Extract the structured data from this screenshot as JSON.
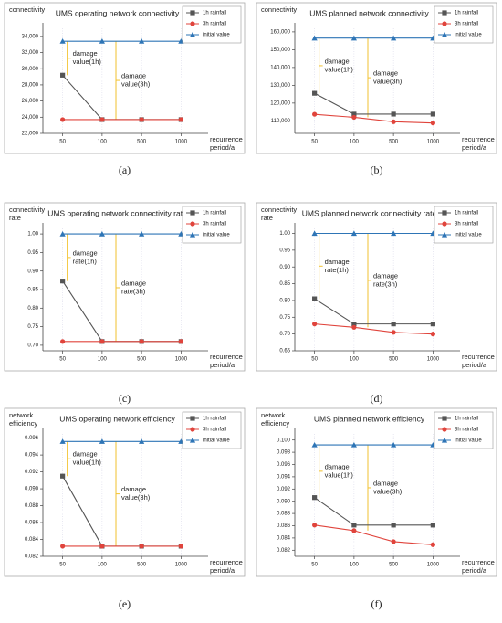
{
  "chart_data": [
    {
      "type": "line",
      "panel_label": "(a)",
      "title": "UMS operating network connectivity",
      "ylabel": [
        "connectivity"
      ],
      "xlabel": [
        "recurrence",
        "period/a"
      ],
      "categories": [
        "50",
        "100",
        "500",
        "1000"
      ],
      "series": [
        {
          "name": "1h rainfall",
          "color": "#555555",
          "marker": "square",
          "values": [
            29200,
            23700,
            23700,
            23700
          ]
        },
        {
          "name": "3h rainfall",
          "color": "#e0443c",
          "marker": "circle",
          "values": [
            23700,
            23700,
            23700,
            23700
          ]
        },
        {
          "name": "initial value",
          "color": "#2e75b6",
          "marker": "triangle",
          "values": [
            33400,
            33400,
            33400,
            33400
          ]
        }
      ],
      "ylim": [
        22000,
        35000
      ],
      "yticks": [
        {
          "value": 22000,
          "label": "22,000"
        },
        {
          "value": 24000,
          "label": "24,000"
        },
        {
          "value": 26000,
          "label": "26,000"
        },
        {
          "value": 28000,
          "label": "28,000"
        },
        {
          "value": 30000,
          "label": "30,000"
        },
        {
          "value": 32000,
          "label": "32,000"
        },
        {
          "value": 34000,
          "label": "34,000"
        }
      ],
      "annotations": [
        [
          "damage",
          "value(1h)"
        ],
        [
          "damage",
          "value(3h)"
        ]
      ]
    },
    {
      "type": "line",
      "panel_label": "(b)",
      "title": "UMS planned network connectivity",
      "ylabel": [
        "connectivity"
      ],
      "xlabel": [
        "recurrence",
        "period/a"
      ],
      "categories": [
        "50",
        "100",
        "500",
        "1000"
      ],
      "series": [
        {
          "name": "1h rainfall",
          "color": "#555555",
          "marker": "square",
          "values": [
            125500,
            113800,
            113800,
            113800
          ]
        },
        {
          "name": "3h rainfall",
          "color": "#e0443c",
          "marker": "circle",
          "values": [
            113700,
            112000,
            109500,
            108800
          ]
        },
        {
          "name": "initial value",
          "color": "#2e75b6",
          "marker": "triangle",
          "values": [
            156500,
            156500,
            156500,
            156500
          ]
        }
      ],
      "ylim": [
        103000,
        162000
      ],
      "yticks": [
        {
          "value": 110000,
          "label": "110,000"
        },
        {
          "value": 120000,
          "label": "120,000"
        },
        {
          "value": 130000,
          "label": "130,000"
        },
        {
          "value": 140000,
          "label": "140,000"
        },
        {
          "value": 150000,
          "label": "150,000"
        },
        {
          "value": 160000,
          "label": "160,000"
        }
      ],
      "annotations": [
        [
          "damage",
          "value(1h)"
        ],
        [
          "damage",
          "value(3h)"
        ]
      ]
    },
    {
      "type": "line",
      "panel_label": "(c)",
      "title": "UMS operating network connectivity rate",
      "ylabel": [
        "connectivity",
        "rate"
      ],
      "xlabel": [
        "recurrence",
        "period/a"
      ],
      "categories": [
        "50",
        "100",
        "500",
        "1000"
      ],
      "series": [
        {
          "name": "1h rainfall",
          "color": "#555555",
          "marker": "square",
          "values": [
            0.873,
            0.71,
            0.71,
            0.71
          ]
        },
        {
          "name": "3h rainfall",
          "color": "#e0443c",
          "marker": "circle",
          "values": [
            0.71,
            0.71,
            0.71,
            0.71
          ]
        },
        {
          "name": "initial value",
          "color": "#2e75b6",
          "marker": "triangle",
          "values": [
            1.0,
            1.0,
            1.0,
            1.0
          ]
        }
      ],
      "ylim": [
        0.685,
        1.015
      ],
      "yticks": [
        {
          "value": 0.7,
          "label": "0.70"
        },
        0.75,
        {
          "value": 0.8,
          "label": "0.80"
        },
        0.85,
        {
          "value": 0.9,
          "label": "0.90"
        },
        0.95,
        {
          "value": 1.0,
          "label": "1.00"
        }
      ],
      "annotations": [
        [
          "damage",
          "rate(1h)"
        ],
        [
          "damage",
          "rate(3h)"
        ]
      ]
    },
    {
      "type": "line",
      "panel_label": "(d)",
      "title": "UMS planned network connectivity rate",
      "ylabel": [
        "connectivity",
        "rate"
      ],
      "xlabel": [
        "recurrence",
        "period/a"
      ],
      "categories": [
        "50",
        "100",
        "500",
        "1000"
      ],
      "series": [
        {
          "name": "1h rainfall",
          "color": "#555555",
          "marker": "square",
          "values": [
            0.805,
            0.73,
            0.73,
            0.73
          ]
        },
        {
          "name": "3h rainfall",
          "color": "#e0443c",
          "marker": "circle",
          "values": [
            0.73,
            0.72,
            0.705,
            0.7
          ]
        },
        {
          "name": "initial value",
          "color": "#2e75b6",
          "marker": "triangle",
          "values": [
            1.0,
            1.0,
            1.0,
            1.0
          ]
        }
      ],
      "ylim": [
        0.65,
        1.015
      ],
      "yticks": [
        0.65,
        {
          "value": 0.7,
          "label": "0.70"
        },
        0.75,
        {
          "value": 0.8,
          "label": "0.80"
        },
        0.85,
        {
          "value": 0.9,
          "label": "0.90"
        },
        0.95,
        {
          "value": 1.0,
          "label": "1.00"
        }
      ],
      "annotations": [
        [
          "damage",
          "rate(1h)"
        ],
        [
          "damage",
          "rate(3h)"
        ]
      ]
    },
    {
      "type": "line",
      "panel_label": "(e)",
      "title": "UMS operating network efficiency",
      "ylabel": [
        "network",
        "efficiency"
      ],
      "xlabel": [
        "recurrence",
        "period/a"
      ],
      "categories": [
        "50",
        "100",
        "500",
        "1000"
      ],
      "series": [
        {
          "name": "1h rainfall",
          "color": "#555555",
          "marker": "square",
          "values": [
            0.0915,
            0.0832,
            0.0832,
            0.0832
          ]
        },
        {
          "name": "3h rainfall",
          "color": "#e0443c",
          "marker": "circle",
          "values": [
            0.0832,
            0.0832,
            0.0832,
            0.0832
          ]
        },
        {
          "name": "initial value",
          "color": "#2e75b6",
          "marker": "triangle",
          "values": [
            0.0956,
            0.0956,
            0.0956,
            0.0956
          ]
        }
      ],
      "ylim": [
        0.082,
        0.0965
      ],
      "yticks": [
        0.082,
        0.084,
        0.086,
        0.088,
        {
          "value": 0.09,
          "label": "0.090"
        },
        0.092,
        0.094,
        0.096
      ],
      "annotations": [
        [
          "damage",
          "value(1h)"
        ],
        [
          "damage",
          "value(3h)"
        ]
      ]
    },
    {
      "type": "line",
      "panel_label": "(f)",
      "title": "UMS planned network efficiency",
      "ylabel": [
        "network",
        "efficiency"
      ],
      "xlabel": [
        "recurrence",
        "period/a"
      ],
      "categories": [
        "50",
        "100",
        "500",
        "1000"
      ],
      "series": [
        {
          "name": "1h rainfall",
          "color": "#555555",
          "marker": "square",
          "values": [
            0.0906,
            0.0861,
            0.0861,
            0.0861
          ]
        },
        {
          "name": "3h rainfall",
          "color": "#e0443c",
          "marker": "circle",
          "values": [
            0.0861,
            0.0852,
            0.0834,
            0.0829
          ]
        },
        {
          "name": "initial value",
          "color": "#2e75b6",
          "marker": "triangle",
          "values": [
            0.0992,
            0.0992,
            0.0992,
            0.0992
          ]
        }
      ],
      "ylim": [
        0.081,
        0.101
      ],
      "yticks": [
        0.082,
        0.084,
        0.086,
        0.088,
        {
          "value": 0.09,
          "label": "0.090"
        },
        0.092,
        0.094,
        0.096,
        0.098,
        {
          "value": 0.1,
          "label": "0.100"
        }
      ],
      "annotations": [
        [
          "damage",
          "value(1h)"
        ],
        [
          "damage",
          "value(3h)"
        ]
      ]
    }
  ]
}
